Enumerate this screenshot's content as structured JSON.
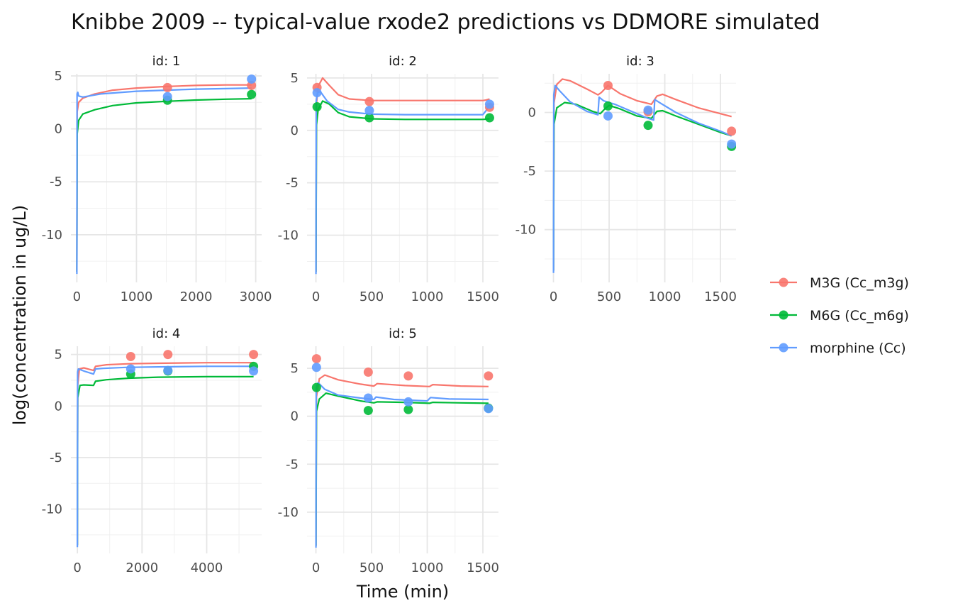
{
  "chart_data": {
    "type": "line",
    "title": "Knibbe 2009 -- typical-value rxode2 predictions vs DDMORE simulated",
    "xlabel": "Time (min)",
    "ylabel": "log(concentration in ug/L)",
    "grid": true,
    "legend_position": "right",
    "series_def": [
      {
        "key": "m3g",
        "name": "M3G (Cc_m3g)",
        "color": "#F8766D"
      },
      {
        "key": "m6g",
        "name": "M6G (Cc_m6g)",
        "color": "#00BA38"
      },
      {
        "key": "mor",
        "name": "morphine (Cc)",
        "color": "#619CFF"
      }
    ],
    "panels": [
      {
        "strip": "id: 1",
        "xlim": [
          -100,
          3100
        ],
        "xticks": [
          0,
          1000,
          2000,
          3000
        ],
        "ylim": [
          -14.5,
          5.2
        ],
        "yticks": [
          -10,
          -5,
          0,
          5
        ],
        "lines": {
          "mor": [
            [
              0,
              -13.7
            ],
            [
              4,
              3.3
            ],
            [
              15,
              3.45
            ],
            [
              30,
              3.1
            ],
            [
              100,
              3.0
            ],
            [
              400,
              3.3
            ],
            [
              1000,
              3.55
            ],
            [
              1500,
              3.65
            ],
            [
              2000,
              3.75
            ],
            [
              2500,
              3.8
            ],
            [
              2930,
              3.85
            ]
          ],
          "m3g": [
            [
              0,
              -13.5
            ],
            [
              5,
              1.6
            ],
            [
              30,
              2.5
            ],
            [
              100,
              2.9
            ],
            [
              300,
              3.3
            ],
            [
              600,
              3.65
            ],
            [
              1000,
              3.85
            ],
            [
              1500,
              4.0
            ],
            [
              2000,
              4.1
            ],
            [
              2500,
              4.15
            ],
            [
              2930,
              4.15
            ]
          ],
          "m6g": [
            [
              0,
              -13.5
            ],
            [
              5,
              -0.5
            ],
            [
              30,
              0.8
            ],
            [
              100,
              1.4
            ],
            [
              300,
              1.8
            ],
            [
              600,
              2.2
            ],
            [
              1000,
              2.45
            ],
            [
              1500,
              2.6
            ],
            [
              2000,
              2.72
            ],
            [
              2500,
              2.8
            ],
            [
              2930,
              2.85
            ]
          ]
        },
        "points": {
          "m3g": [
            [
              1520,
              3.9
            ],
            [
              2930,
              4.1
            ]
          ],
          "m6g": [
            [
              1520,
              2.7
            ],
            [
              2930,
              3.25
            ]
          ],
          "mor": [
            [
              1520,
              3.05
            ],
            [
              2930,
              4.7
            ]
          ]
        }
      },
      {
        "strip": "id: 2",
        "xlim": [
          -80,
          1640
        ],
        "xticks": [
          0,
          500,
          1000,
          1500
        ],
        "ylim": [
          -14.5,
          5.4
        ],
        "yticks": [
          -10,
          -5,
          0,
          5
        ],
        "lines": {
          "mor": [
            [
              0,
              -13.7
            ],
            [
              3,
              2.8
            ],
            [
              15,
              3.6
            ],
            [
              40,
              3.7
            ],
            [
              100,
              2.8
            ],
            [
              200,
              2.0
            ],
            [
              300,
              1.75
            ],
            [
              500,
              1.55
            ],
            [
              800,
              1.5
            ],
            [
              1000,
              1.5
            ],
            [
              1500,
              1.5
            ],
            [
              1530,
              1.9
            ],
            [
              1560,
              2.5
            ]
          ],
          "m3g": [
            [
              0,
              -13.5
            ],
            [
              5,
              2.5
            ],
            [
              20,
              4.2
            ],
            [
              60,
              5.0
            ],
            [
              120,
              4.3
            ],
            [
              200,
              3.4
            ],
            [
              300,
              3.0
            ],
            [
              500,
              2.85
            ],
            [
              800,
              2.85
            ],
            [
              1000,
              2.85
            ],
            [
              1500,
              2.85
            ],
            [
              1530,
              2.9
            ],
            [
              1560,
              3.0
            ]
          ],
          "m6g": [
            [
              0,
              -13.5
            ],
            [
              5,
              0.5
            ],
            [
              20,
              2.0
            ],
            [
              60,
              2.8
            ],
            [
              120,
              2.5
            ],
            [
              200,
              1.7
            ],
            [
              300,
              1.3
            ],
            [
              500,
              1.1
            ],
            [
              800,
              1.05
            ],
            [
              1000,
              1.05
            ],
            [
              1500,
              1.05
            ],
            [
              1560,
              1.1
            ]
          ]
        },
        "points": {
          "m3g": [
            [
              10,
              4.1
            ],
            [
              480,
              2.75
            ],
            [
              1560,
              2.2
            ]
          ],
          "m6g": [
            [
              10,
              2.25
            ],
            [
              480,
              1.2
            ],
            [
              1560,
              1.2
            ]
          ],
          "mor": [
            [
              10,
              3.6
            ],
            [
              480,
              1.9
            ],
            [
              1560,
              2.5
            ]
          ]
        }
      },
      {
        "strip": "id: 3",
        "xlim": [
          -80,
          1640
        ],
        "xticks": [
          0,
          500,
          1000,
          1500
        ],
        "ylim": [
          -14.5,
          3.3
        ],
        "yticks": [
          -10,
          -5,
          0
        ],
        "lines": {
          "mor": [
            [
              0,
              -13.7
            ],
            [
              3,
              1.5
            ],
            [
              15,
              2.3
            ],
            [
              60,
              1.8
            ],
            [
              150,
              0.9
            ],
            [
              300,
              0.1
            ],
            [
              400,
              -0.2
            ],
            [
              410,
              1.3
            ],
            [
              450,
              1.0
            ],
            [
              550,
              0.7
            ],
            [
              700,
              0.1
            ],
            [
              850,
              -0.5
            ],
            [
              900,
              -0.65
            ],
            [
              910,
              1.1
            ],
            [
              960,
              0.8
            ],
            [
              1100,
              0.0
            ],
            [
              1300,
              -0.9
            ],
            [
              1500,
              -1.6
            ],
            [
              1600,
              -2.0
            ]
          ],
          "m3g": [
            [
              0,
              -13.5
            ],
            [
              5,
              0.8
            ],
            [
              30,
              2.4
            ],
            [
              80,
              2.85
            ],
            [
              150,
              2.7
            ],
            [
              300,
              2.0
            ],
            [
              400,
              1.5
            ],
            [
              430,
              1.7
            ],
            [
              490,
              2.3
            ],
            [
              600,
              1.6
            ],
            [
              750,
              1.0
            ],
            [
              880,
              0.7
            ],
            [
              930,
              1.4
            ],
            [
              980,
              1.55
            ],
            [
              1100,
              1.1
            ],
            [
              1300,
              0.4
            ],
            [
              1500,
              -0.1
            ],
            [
              1600,
              -0.35
            ]
          ],
          "m6g": [
            [
              0,
              -13.5
            ],
            [
              5,
              -1.0
            ],
            [
              30,
              0.4
            ],
            [
              100,
              0.85
            ],
            [
              200,
              0.7
            ],
            [
              350,
              0.1
            ],
            [
              420,
              -0.1
            ],
            [
              460,
              0.3
            ],
            [
              500,
              0.6
            ],
            [
              600,
              0.3
            ],
            [
              750,
              -0.3
            ],
            [
              880,
              -0.5
            ],
            [
              930,
              0.1
            ],
            [
              980,
              0.15
            ],
            [
              1100,
              -0.3
            ],
            [
              1300,
              -1.0
            ],
            [
              1500,
              -1.7
            ],
            [
              1600,
              -2.0
            ]
          ]
        },
        "points": {
          "m3g": [
            [
              490,
              2.3
            ],
            [
              850,
              0.05
            ],
            [
              1600,
              -1.6
            ]
          ],
          "m6g": [
            [
              490,
              0.55
            ],
            [
              850,
              -1.1
            ],
            [
              1600,
              -2.9
            ]
          ],
          "mor": [
            [
              490,
              -0.3
            ],
            [
              850,
              0.2
            ],
            [
              1600,
              -2.7
            ]
          ]
        }
      },
      {
        "strip": "id: 4",
        "xlim": [
          -200,
          5700
        ],
        "xticks": [
          0,
          2000,
          4000
        ],
        "ylim": [
          -14.3,
          5.8
        ],
        "yticks": [
          -10,
          -5,
          0,
          5
        ],
        "lines": {
          "mor": [
            [
              0,
              -13.7
            ],
            [
              8,
              3.3
            ],
            [
              30,
              3.6
            ],
            [
              200,
              3.4
            ],
            [
              500,
              3.1
            ],
            [
              560,
              3.6
            ],
            [
              800,
              3.65
            ],
            [
              1500,
              3.75
            ],
            [
              2500,
              3.8
            ],
            [
              4000,
              3.85
            ],
            [
              5450,
              3.85
            ]
          ],
          "m3g": [
            [
              0,
              -13.5
            ],
            [
              10,
              2.0
            ],
            [
              60,
              3.6
            ],
            [
              200,
              3.7
            ],
            [
              500,
              3.45
            ],
            [
              560,
              3.85
            ],
            [
              900,
              4.0
            ],
            [
              1600,
              4.1
            ],
            [
              2500,
              4.15
            ],
            [
              4000,
              4.2
            ],
            [
              5450,
              4.2
            ]
          ],
          "m6g": [
            [
              0,
              -13.5
            ],
            [
              10,
              0.8
            ],
            [
              80,
              2.0
            ],
            [
              200,
              2.05
            ],
            [
              500,
              2.0
            ],
            [
              560,
              2.4
            ],
            [
              900,
              2.55
            ],
            [
              1600,
              2.7
            ],
            [
              2500,
              2.8
            ],
            [
              4000,
              2.85
            ],
            [
              5450,
              2.85
            ]
          ]
        },
        "points": {
          "m3g": [
            [
              1650,
              4.8
            ],
            [
              2800,
              5.0
            ],
            [
              5450,
              5.0
            ]
          ],
          "m6g": [
            [
              1650,
              3.1
            ],
            [
              2800,
              3.4
            ],
            [
              5450,
              3.85
            ]
          ],
          "mor": [
            [
              1650,
              3.6
            ],
            [
              2800,
              3.45
            ],
            [
              5450,
              3.4
            ]
          ]
        }
      },
      {
        "strip": "id: 5",
        "xlim": [
          -80,
          1640
        ],
        "xticks": [
          0,
          500,
          1000,
          1500
        ],
        "ylim": [
          -14.3,
          7.3
        ],
        "yticks": [
          -10,
          -5,
          0,
          5
        ],
        "lines": {
          "mor": [
            [
              0,
              -13.7
            ],
            [
              3,
              3.0
            ],
            [
              20,
              3.5
            ],
            [
              80,
              2.8
            ],
            [
              200,
              2.2
            ],
            [
              400,
              1.9
            ],
            [
              520,
              1.75
            ],
            [
              540,
              2.0
            ],
            [
              700,
              1.75
            ],
            [
              1000,
              1.6
            ],
            [
              1030,
              1.95
            ],
            [
              1200,
              1.8
            ],
            [
              1550,
              1.75
            ]
          ],
          "m3g": [
            [
              0,
              -13.5
            ],
            [
              5,
              2.0
            ],
            [
              30,
              3.9
            ],
            [
              80,
              4.3
            ],
            [
              200,
              3.8
            ],
            [
              400,
              3.35
            ],
            [
              520,
              3.15
            ],
            [
              550,
              3.4
            ],
            [
              800,
              3.2
            ],
            [
              1020,
              3.1
            ],
            [
              1050,
              3.3
            ],
            [
              1300,
              3.15
            ],
            [
              1550,
              3.1
            ]
          ],
          "m6g": [
            [
              0,
              -13.5
            ],
            [
              5,
              0.5
            ],
            [
              30,
              1.8
            ],
            [
              90,
              2.4
            ],
            [
              200,
              2.1
            ],
            [
              400,
              1.6
            ],
            [
              520,
              1.4
            ],
            [
              550,
              1.5
            ],
            [
              800,
              1.45
            ],
            [
              1020,
              1.35
            ],
            [
              1050,
              1.45
            ],
            [
              1300,
              1.4
            ],
            [
              1550,
              1.35
            ]
          ]
        },
        "points": {
          "m3g": [
            [
              5,
              6.0
            ],
            [
              470,
              4.6
            ],
            [
              830,
              4.2
            ],
            [
              1550,
              4.2
            ]
          ],
          "m6g": [
            [
              5,
              3.0
            ],
            [
              470,
              0.6
            ],
            [
              830,
              0.7
            ],
            [
              1550,
              0.85
            ]
          ],
          "mor": [
            [
              5,
              5.1
            ],
            [
              470,
              1.9
            ],
            [
              830,
              1.5
            ],
            [
              1550,
              0.8
            ]
          ]
        }
      }
    ]
  }
}
